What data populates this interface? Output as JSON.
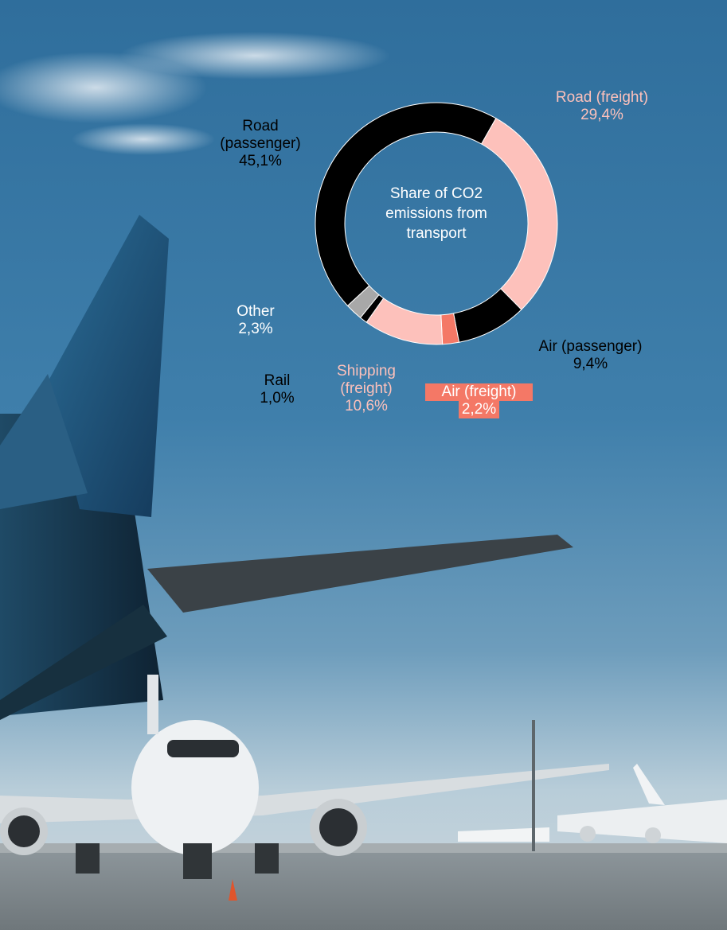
{
  "chart_data": {
    "type": "pie",
    "donut": true,
    "title": "Share of CO2 emissions from transport",
    "slices": [
      {
        "label": "Road (passenger)",
        "value": 45.1,
        "value_text": "45,1%",
        "color": "#000000"
      },
      {
        "label": "Road (freight)",
        "value": 29.4,
        "value_text": "29,4%",
        "color": "#fdc1bb"
      },
      {
        "label": "Air (passenger)",
        "value": 9.4,
        "value_text": "9,4%",
        "color": "#000000"
      },
      {
        "label": "Air (freight)",
        "value": 2.2,
        "value_text": "2,2%",
        "color": "#f47866"
      },
      {
        "label": "Shipping (freight)",
        "value": 10.6,
        "value_text": "10,6%",
        "color": "#fdc1bb"
      },
      {
        "label": "Rail",
        "value": 1.0,
        "value_text": "1,0%",
        "color": "#000000"
      },
      {
        "label": "Other",
        "value": 2.3,
        "value_text": "2,3%",
        "color": "#a8a8a8"
      }
    ]
  },
  "labels": {
    "road_passenger": {
      "line1": "Road",
      "line2": "(passenger)",
      "value": "45,1%"
    },
    "road_freight": {
      "line1": "Road (freight)",
      "value": "29,4%"
    },
    "air_passenger": {
      "line1": "Air (passenger)",
      "value": "9,4%"
    },
    "air_freight": {
      "line1": "Air (freight)",
      "value": "2,2%"
    },
    "shipping": {
      "line1": "Shipping",
      "line2": "(freight)",
      "value": "10,6%"
    },
    "rail": {
      "line1": "Rail",
      "value": "1,0%"
    },
    "other": {
      "line1": "Other",
      "value": "2,3%"
    }
  },
  "center": {
    "line1": "Share of CO2",
    "line2": "emissions from",
    "line3": "transport"
  }
}
